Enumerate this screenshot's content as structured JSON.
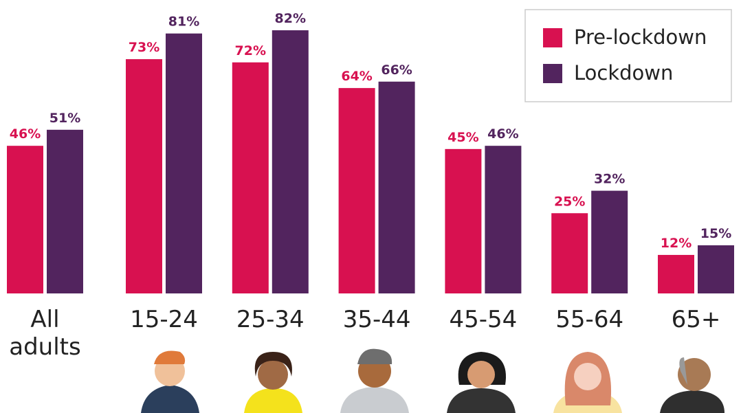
{
  "chart_data": {
    "type": "bar",
    "categories": [
      "All adults",
      "15-24",
      "25-34",
      "35-44",
      "45-54",
      "55-64",
      "65+"
    ],
    "series": [
      {
        "name": "Pre-lockdown",
        "color": "#d81150",
        "values": [
          46,
          73,
          72,
          64,
          45,
          25,
          12
        ],
        "value_labels": [
          "46%",
          "73%",
          "72%",
          "64%",
          "45%",
          "25%",
          "12%"
        ]
      },
      {
        "name": "Lockdown",
        "color": "#52245e",
        "values": [
          51,
          81,
          82,
          66,
          46,
          32,
          15
        ],
        "value_labels": [
          "51%",
          "81%",
          "82%",
          "66%",
          "46%",
          "32%",
          "15%"
        ]
      }
    ],
    "ylim": [
      0,
      100
    ],
    "legend": "top-right"
  }
}
